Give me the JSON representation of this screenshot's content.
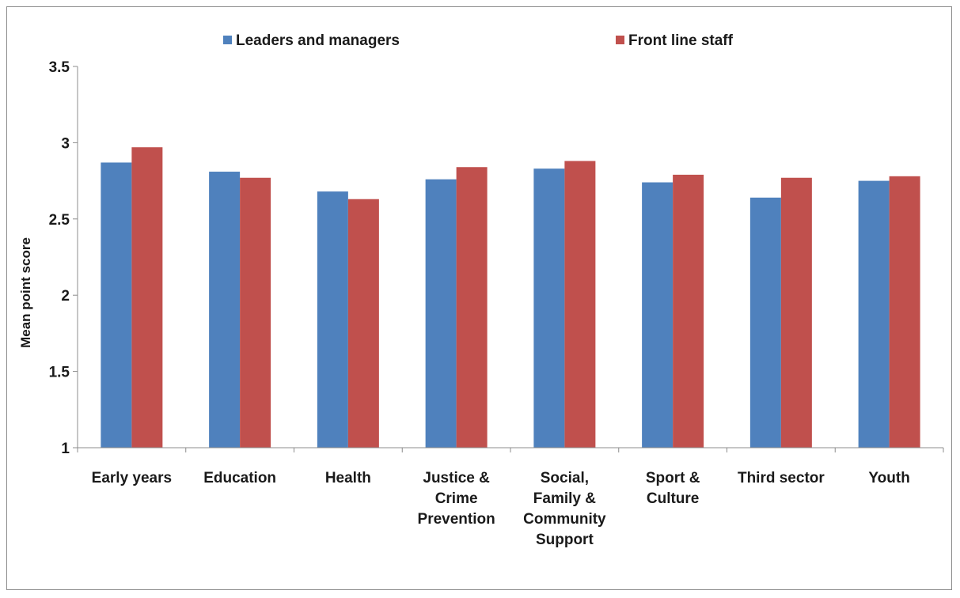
{
  "chart_data": {
    "type": "bar",
    "title": "",
    "xlabel": "",
    "ylabel": "Mean point score",
    "ylim": [
      1,
      3.5
    ],
    "yticks": [
      "1",
      "1.5",
      "2",
      "2.5",
      "3",
      "3.5"
    ],
    "grid": false,
    "legend_position": "top",
    "categories": [
      [
        "Early years"
      ],
      [
        "Education"
      ],
      [
        "Health"
      ],
      [
        "Justice &",
        "Crime",
        "Prevention"
      ],
      [
        "Social,",
        "Family &",
        "Community",
        "Support"
      ],
      [
        "Sport &",
        "Culture"
      ],
      [
        "Third sector"
      ],
      [
        "Youth"
      ]
    ],
    "series": [
      {
        "name": "Leaders and managers",
        "color": "#4f81bd",
        "values": [
          2.87,
          2.81,
          2.68,
          2.76,
          2.83,
          2.74,
          2.64,
          2.75
        ]
      },
      {
        "name": "Front line staff",
        "color": "#c0504d",
        "values": [
          2.97,
          2.77,
          2.63,
          2.84,
          2.88,
          2.79,
          2.77,
          2.78
        ]
      }
    ]
  }
}
